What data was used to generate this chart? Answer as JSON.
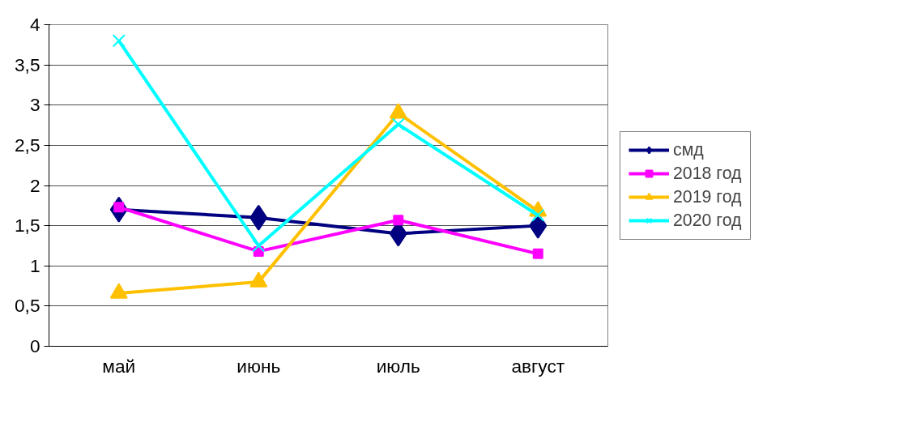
{
  "chart_data": {
    "type": "line",
    "categories": [
      "май",
      "июнь",
      "июль",
      "август"
    ],
    "series": [
      {
        "name": "смд",
        "color": "#000080",
        "marker": "diamond",
        "values": [
          1.7,
          1.6,
          1.4,
          1.5
        ]
      },
      {
        "name": "2018 год",
        "color": "#ff00ff",
        "marker": "square",
        "values": [
          1.73,
          1.18,
          1.57,
          1.15
        ]
      },
      {
        "name": "2019 год",
        "color": "#ffc000",
        "marker": "triangle",
        "values": [
          0.66,
          0.8,
          2.9,
          1.68
        ]
      },
      {
        "name": "2020 год",
        "color": "#00ffff",
        "marker": "cross",
        "values": [
          3.8,
          1.25,
          2.76,
          1.63
        ]
      }
    ],
    "ylim": [
      0,
      4
    ],
    "yticks": [
      0,
      {
        "value": 0.5,
        "label": "0,5"
      },
      1,
      {
        "value": 1.5,
        "label": "1,5"
      },
      2,
      {
        "value": 2.5,
        "label": "2,5"
      },
      3,
      {
        "value": 3.5,
        "label": "3,5"
      },
      4
    ],
    "grid": "y",
    "legend": "right",
    "line_style": "solid"
  }
}
